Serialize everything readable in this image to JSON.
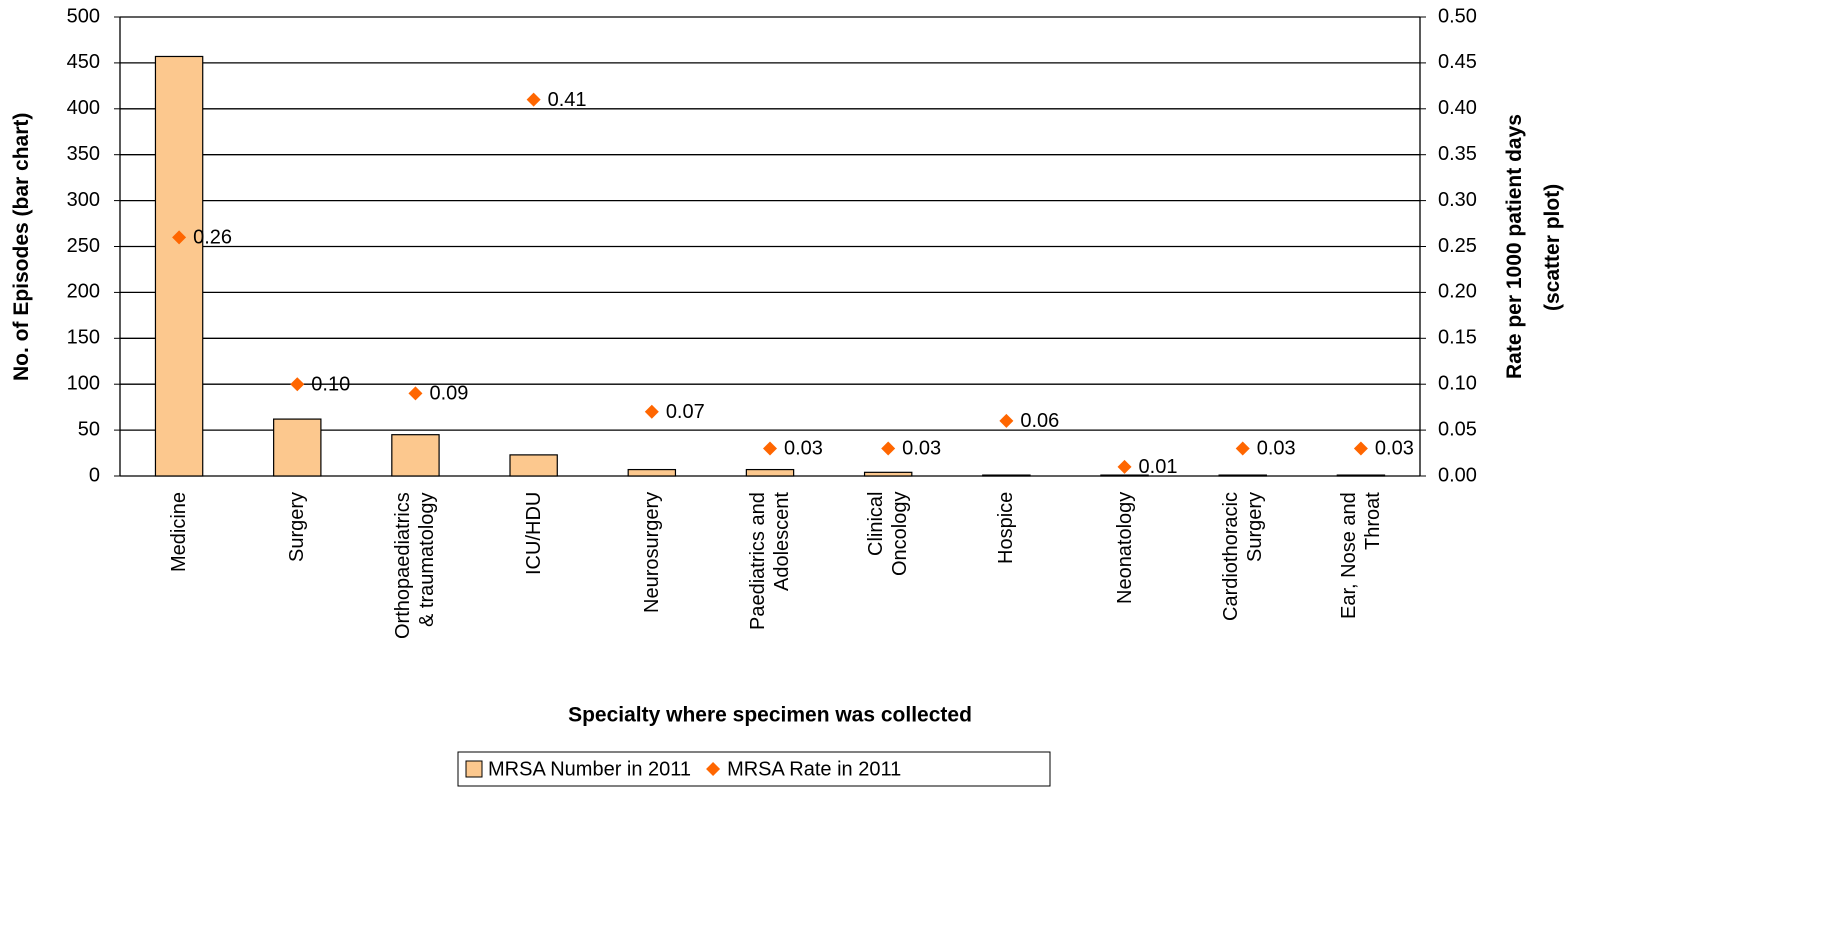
{
  "chart_data": {
    "type": "bar",
    "x_label": "Specialty where specimen was collected",
    "y_label": "No. of Episodes (bar chart)",
    "y2_label": "Rate per 1000 patient days\n(scatter plot)",
    "categories": [
      "Medicine",
      "Surgery",
      "Orthopaediatrics\n& traumatology",
      "ICU/HDU",
      "Neurosurgery",
      "Paediatrics and\nAdolescent",
      "Clinical\nOncology",
      "Hospice",
      "Neonatology",
      "Cardiothoracic\nSurgery",
      "Ear, Nose and\nThroat"
    ],
    "series": [
      {
        "name": "MRSA Number in 2011",
        "type": "bar",
        "color": "#fcc88e",
        "values": [
          457,
          62,
          45,
          23,
          7,
          7,
          4,
          1,
          1,
          1,
          1
        ]
      },
      {
        "name": "MRSA Rate in 2011",
        "type": "scatter",
        "axis": "y2",
        "color": "#ff6600",
        "values": [
          0.26,
          0.1,
          0.09,
          0.41,
          0.07,
          0.03,
          0.03,
          0.06,
          0.01,
          0.03,
          0.03
        ],
        "value_labels": [
          "0.26",
          "0.10",
          "0.09",
          "0.41",
          "0.07",
          "0.03",
          "0.03",
          "0.06",
          "0.01",
          "0.03",
          "0.03"
        ]
      }
    ],
    "ylim": [
      0,
      500
    ],
    "yticks": [
      0,
      50,
      100,
      150,
      200,
      250,
      300,
      350,
      400,
      450,
      500
    ],
    "y2lim": [
      0,
      0.5
    ],
    "y2ticks": [
      {
        "value": 0,
        "label": "0.00"
      },
      0.05,
      {
        "value": 0.1,
        "label": "0.10"
      },
      0.15,
      {
        "value": 0.2,
        "label": "0.20"
      },
      0.25,
      {
        "value": 0.3,
        "label": "0.30"
      },
      0.35,
      {
        "value": 0.4,
        "label": "0.40"
      },
      0.45,
      {
        "value": 0.5,
        "label": "0.50"
      }
    ],
    "grid": true,
    "legend": "bottom"
  }
}
